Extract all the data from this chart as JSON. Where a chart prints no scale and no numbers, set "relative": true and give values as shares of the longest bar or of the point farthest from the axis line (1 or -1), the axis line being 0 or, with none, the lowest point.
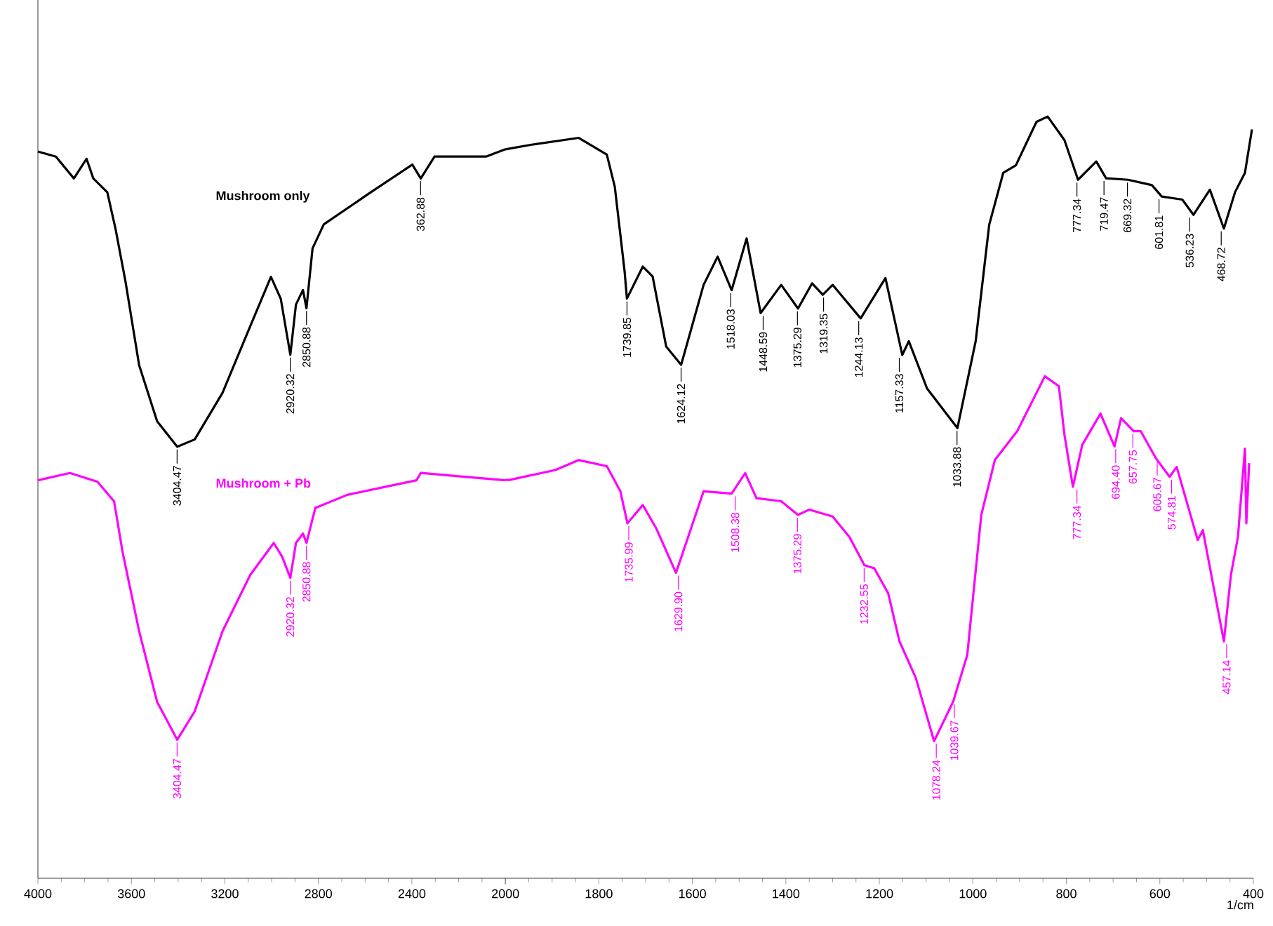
{
  "chart_data": [
    {
      "type": "line",
      "relative": true,
      "x": [
        4000,
        3923,
        3846,
        3792,
        3763,
        3703,
        3668,
        3626,
        3567,
        3490,
        3404,
        3329,
        3210,
        3092,
        3003,
        2961,
        2920,
        2896,
        2866,
        2851,
        2825,
        2777,
        2576,
        2398,
        2362,
        2303,
        2083,
        2000
      ],
      "xlim": [
        4000,
        2000
      ],
      "xticks": [
        4000,
        3600,
        3200,
        2800,
        2400,
        {
          "value": 2000,
          "label": null
        }
      ],
      "tick_labels": "x",
      "series": [
        {
          "name": "Mushroom only",
          "color": "#000000",
          "values": [
            0.997,
            0.99,
            0.96,
            0.987,
            0.96,
            0.941,
            0.891,
            0.82,
            0.704,
            0.627,
            0.592,
            0.602,
            0.666,
            0.757,
            0.825,
            0.795,
            0.718,
            0.787,
            0.807,
            0.782,
            0.864,
            0.897,
            0.941,
            0.979,
            0.96,
            0.99,
            0.99,
            1.0
          ]
        },
        {
          "name": "Mushroom + Pb",
          "color": "#ff00ff",
          "x": [
            4000,
            3863,
            3745,
            3674,
            3638,
            3567,
            3490,
            3404,
            3329,
            3210,
            3092,
            2991,
            2955,
            2920,
            2896,
            2866,
            2851,
            2813,
            2676,
            2380,
            2362,
            2184,
            2000
          ],
          "values": [
            0.546,
            0.556,
            0.544,
            0.517,
            0.448,
            0.339,
            0.242,
            0.19,
            0.229,
            0.339,
            0.416,
            0.46,
            0.441,
            0.412,
            0.46,
            0.473,
            0.46,
            0.508,
            0.526,
            0.546,
            0.556,
            0.551,
            0.546
          ]
        }
      ],
      "annotations": [
        {
          "text": "3404.47",
          "x": 3404.47,
          "y": 0.592
        },
        {
          "text": "2920.32",
          "x": 2920.32,
          "y": 0.718
        },
        {
          "text": "2850.88",
          "x": 2850.88,
          "y": 0.782
        },
        {
          "text": "362.88",
          "x": 2362.88,
          "y": 0.96
        },
        {
          "text": "3404.47",
          "x": 3404.47,
          "y": 0.19
        },
        {
          "text": "2920.32",
          "x": 2920.32,
          "y": 0.412
        },
        {
          "text": "2850.88",
          "x": 2850.88,
          "y": 0.46
        }
      ]
    },
    {
      "type": "line",
      "relative": true,
      "xlabel": "1/cm",
      "x": [
        2000,
        1944,
        1843,
        1783,
        1766,
        1745,
        1740,
        1706,
        1685,
        1656,
        1624,
        1576,
        1546,
        1516,
        1484,
        1454,
        1410,
        1374,
        1344,
        1321,
        1300,
        1240,
        1187,
        1151,
        1137,
        1098,
        1033,
        994,
        965,
        935,
        908,
        864,
        840,
        804,
        775,
        736,
        715,
        668,
        617,
        596,
        552,
        528,
        493,
        463,
        439,
        418,
        403
      ],
      "xlim": [
        2000,
        400
      ],
      "xticks": [
        2000,
        1800,
        1600,
        1400,
        1200,
        1000,
        800,
        600,
        400
      ],
      "tick_labels": "x",
      "series": [
        {
          "color": "#000000",
          "values": [
            0.957,
            0.963,
            0.972,
            0.95,
            0.908,
            0.797,
            0.761,
            0.803,
            0.79,
            0.698,
            0.674,
            0.779,
            0.816,
            0.772,
            0.84,
            0.742,
            0.779,
            0.748,
            0.781,
            0.766,
            0.779,
            0.735,
            0.788,
            0.687,
            0.705,
            0.643,
            0.591,
            0.705,
            0.858,
            0.926,
            0.936,
            0.993,
            1.0,
            0.969,
            0.917,
            0.941,
            0.919,
            0.917,
            0.91,
            0.895,
            0.891,
            0.871,
            0.904,
            0.853,
            0.901,
            0.926,
            0.983
          ]
        },
        {
          "color": "#ff00ff",
          "x": [
            2000,
            1991,
            1893,
            1843,
            1783,
            1754,
            1739,
            1706,
            1677,
            1635,
            1576,
            1516,
            1487,
            1463,
            1410,
            1374,
            1350,
            1300,
            1264,
            1232,
            1211,
            1181,
            1157,
            1122,
            1083,
            1042,
            1012,
            982,
            953,
            905,
            846,
            816,
            804,
            786,
            766,
            727,
            697,
            683,
            656,
            641,
            608,
            579,
            564,
            519,
            508,
            463,
            448,
            433,
            418,
            415,
            409
          ],
          "values": [
            0.523,
            0.523,
            0.536,
            0.549,
            0.541,
            0.508,
            0.466,
            0.49,
            0.459,
            0.401,
            0.508,
            0.505,
            0.532,
            0.499,
            0.495,
            0.477,
            0.484,
            0.475,
            0.448,
            0.411,
            0.407,
            0.374,
            0.311,
            0.263,
            0.18,
            0.232,
            0.293,
            0.477,
            0.549,
            0.587,
            0.659,
            0.646,
            0.582,
            0.514,
            0.569,
            0.61,
            0.567,
            0.604,
            0.587,
            0.587,
            0.551,
            0.527,
            0.54,
            0.444,
            0.457,
            0.311,
            0.398,
            0.448,
            0.564,
            0.466,
            0.545
          ]
        }
      ],
      "annotations": [
        {
          "text": "1739.85",
          "x": 1739.85,
          "y": 0.761
        },
        {
          "text": "1624.12",
          "x": 1624.12,
          "y": 0.674
        },
        {
          "text": "1518.03",
          "x": 1518.03,
          "y": 0.772
        },
        {
          "text": "1448.59",
          "x": 1448.59,
          "y": 0.742
        },
        {
          "text": "1375.29",
          "x": 1375.29,
          "y": 0.748
        },
        {
          "text": "1319.35",
          "x": 1319.35,
          "y": 0.766
        },
        {
          "text": "1244.13",
          "x": 1244.13,
          "y": 0.735
        },
        {
          "text": "1157.33",
          "x": 1157.33,
          "y": 0.687
        },
        {
          "text": "1033.88",
          "x": 1033.88,
          "y": 0.591
        },
        {
          "text": "777.34",
          "x": 777.34,
          "y": 0.917
        },
        {
          "text": "719.47",
          "x": 719.47,
          "y": 0.919
        },
        {
          "text": "669.32",
          "x": 669.32,
          "y": 0.917
        },
        {
          "text": "601.81",
          "x": 601.81,
          "y": 0.895
        },
        {
          "text": "536.23",
          "x": 536.23,
          "y": 0.871
        },
        {
          "text": "468.72",
          "x": 468.72,
          "y": 0.853
        },
        {
          "text": "1735.99",
          "x": 1735.99,
          "y": 0.466
        },
        {
          "text": "1629.90",
          "x": 1629.9,
          "y": 0.401
        },
        {
          "text": "1508.38",
          "x": 1508.38,
          "y": 0.505
        },
        {
          "text": "1375.29",
          "x": 1375.29,
          "y": 0.477
        },
        {
          "text": "1232.55",
          "x": 1232.55,
          "y": 0.411
        },
        {
          "text": "1078.24",
          "x": 1078.24,
          "y": 0.18
        },
        {
          "text": "1039.67",
          "x": 1039.67,
          "y": 0.232
        },
        {
          "text": "777.34",
          "x": 777.34,
          "y": 0.514
        },
        {
          "text": "694.40",
          "x": 694.4,
          "y": 0.567
        },
        {
          "text": "657.75",
          "x": 657.75,
          "y": 0.587
        },
        {
          "text": "605.67",
          "x": 605.67,
          "y": 0.551
        },
        {
          "text": "574.81",
          "x": 574.81,
          "y": 0.527
        },
        {
          "text": "457.14",
          "x": 457.14,
          "y": 0.311
        }
      ]
    }
  ]
}
